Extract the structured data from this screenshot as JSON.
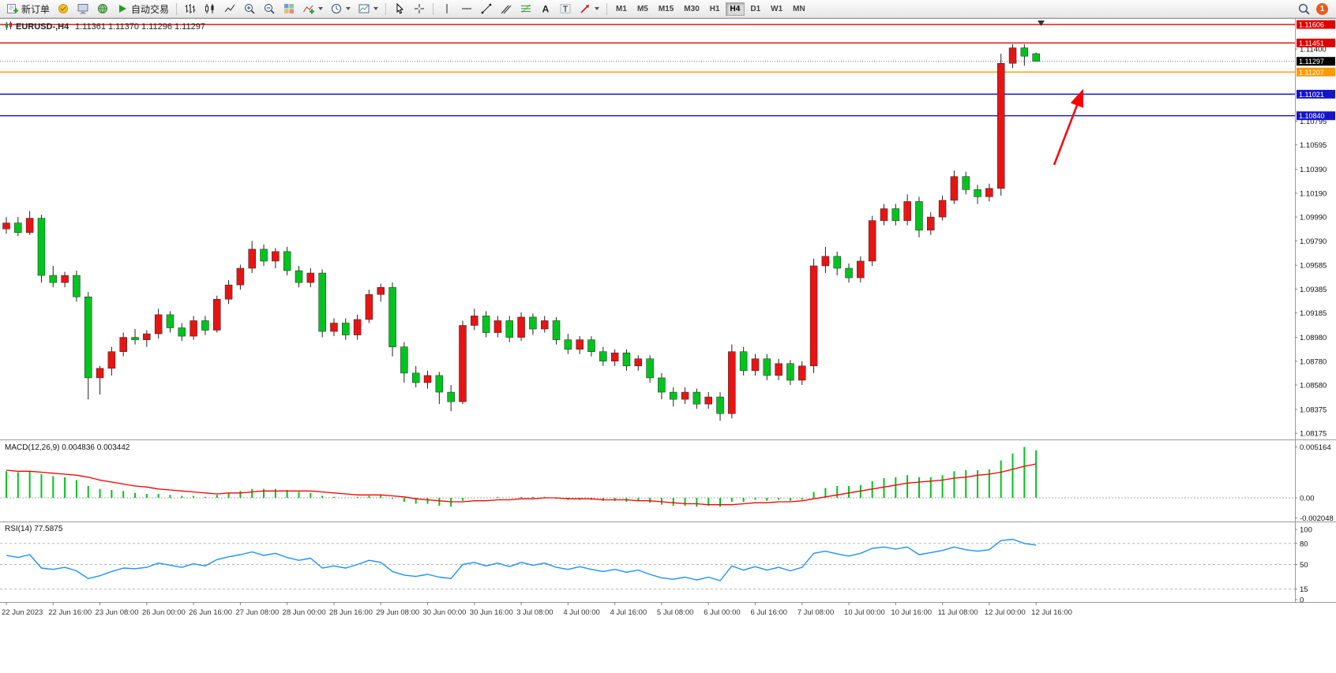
{
  "toolbar": {
    "new_order": "新订单",
    "autotrading": "自动交易",
    "timeframes": [
      "M1",
      "M5",
      "M15",
      "M30",
      "H1",
      "H4",
      "D1",
      "W1",
      "MN"
    ],
    "active_timeframe": "H4",
    "notification_count": "1",
    "icon_glyphs": {
      "text_tool": "A",
      "label_tool": "T"
    }
  },
  "chart": {
    "symbol_title": "EURUSD-,H4",
    "ohlc_quote": "1.11361 1.11370 1.11296 1.11297"
  },
  "chart_data": {
    "type": "candlestick",
    "symbol": "EURUSD-",
    "period": "H4",
    "up_color": "#e81414",
    "down_color": "#00c41e",
    "price_range": {
      "top": 1.11646,
      "bottom": 1.08123
    },
    "y_ticks": [
      "1.11400",
      "1.10795",
      "1.10595",
      "1.10390",
      "1.10190",
      "1.09990",
      "1.09790",
      "1.09585",
      "1.09385",
      "1.09185",
      "1.08980",
      "1.08780",
      "1.08580",
      "1.08375",
      "1.08175"
    ],
    "price_lines": [
      {
        "price": 1.11606,
        "label": "1.11606",
        "color": "#e00000",
        "style": "solid"
      },
      {
        "price": 1.11451,
        "label": "1.11451",
        "color": "#e00000",
        "style": "solid"
      },
      {
        "price": 1.11297,
        "label": "1.11297",
        "color": "#000000",
        "style": "dotted",
        "role": "current-price"
      },
      {
        "price": 1.11207,
        "label": "1.11207",
        "color": "#ff9900",
        "style": "solid"
      },
      {
        "price": 1.11021,
        "label": "1.11021",
        "color": "#1515c8",
        "style": "solid"
      },
      {
        "price": 1.1084,
        "label": "1.10840",
        "color": "#1515c8",
        "style": "solid"
      }
    ],
    "x_labels": [
      "22 Jun 2023",
      "22 Jun 16:00",
      "23 Jun 08:00",
      "26 Jun 00:00",
      "26 Jun 16:00",
      "27 Jun 08:00",
      "28 Jun 00:00",
      "28 Jun 16:00",
      "29 Jun 08:00",
      "30 Jun 00:00",
      "30 Jun 16:00",
      "3 Jul 08:00",
      "4 Jul 00:00",
      "4 Jul 16:00",
      "5 Jul 08:00",
      "6 Jul 00:00",
      "6 Jul 16:00",
      "7 Jul 08:00",
      "10 Jul 00:00",
      "10 Jul 16:00",
      "11 Jul 08:00",
      "12 Jul 00:00",
      "12 Jul 16:00"
    ],
    "x_label_every_n_bars": 4,
    "candles_ohlc": [
      [
        1.0989,
        1.0999,
        1.0985,
        1.0994
      ],
      [
        1.0994,
        1.0999,
        1.0983,
        1.0986
      ],
      [
        1.0986,
        1.1004,
        1.0984,
        1.0998
      ],
      [
        1.0998,
        1.1001,
        1.0944,
        1.095
      ],
      [
        1.095,
        1.0958,
        1.094,
        1.0944
      ],
      [
        1.0944,
        1.0953,
        1.094,
        1.095
      ],
      [
        1.095,
        1.0954,
        1.0928,
        1.0932
      ],
      [
        1.0932,
        1.0936,
        1.0846,
        1.0864
      ],
      [
        1.0864,
        1.0874,
        1.085,
        1.0872
      ],
      [
        1.0872,
        1.089,
        1.0866,
        1.0886
      ],
      [
        1.0886,
        1.0902,
        1.0882,
        1.0898
      ],
      [
        1.0898,
        1.0905,
        1.0892,
        1.0896
      ],
      [
        1.0896,
        1.0904,
        1.089,
        1.0901
      ],
      [
        1.0901,
        1.0922,
        1.0897,
        1.0917
      ],
      [
        1.0917,
        1.092,
        1.0902,
        1.0906
      ],
      [
        1.0906,
        1.091,
        1.0895,
        1.0899
      ],
      [
        1.0899,
        1.0916,
        1.0896,
        1.0912
      ],
      [
        1.0912,
        1.0916,
        1.09,
        1.0904
      ],
      [
        1.0904,
        1.0933,
        1.0902,
        1.093
      ],
      [
        1.093,
        1.0946,
        1.0926,
        1.0942
      ],
      [
        1.0942,
        1.0959,
        1.0938,
        1.0956
      ],
      [
        1.0956,
        1.0979,
        1.0952,
        1.0972
      ],
      [
        1.0972,
        1.0976,
        1.0958,
        1.0962
      ],
      [
        1.0962,
        1.0973,
        1.0956,
        1.097
      ],
      [
        1.097,
        1.0974,
        1.095,
        1.0954
      ],
      [
        1.0954,
        1.0958,
        1.094,
        1.0944
      ],
      [
        1.0944,
        1.0956,
        1.094,
        1.0952
      ],
      [
        1.0952,
        1.0955,
        1.0898,
        1.0903
      ],
      [
        1.0903,
        1.0914,
        1.0899,
        1.091
      ],
      [
        1.091,
        1.0914,
        1.0896,
        1.09
      ],
      [
        1.09,
        1.0917,
        1.0896,
        1.0913
      ],
      [
        1.0913,
        1.0938,
        1.091,
        1.0934
      ],
      [
        1.0934,
        1.0943,
        1.0928,
        1.094
      ],
      [
        1.094,
        1.0944,
        1.0882,
        1.089
      ],
      [
        1.089,
        1.0894,
        1.086,
        1.0868
      ],
      [
        1.0868,
        1.0874,
        1.0856,
        1.086
      ],
      [
        1.086,
        1.087,
        1.0855,
        1.0866
      ],
      [
        1.0866,
        1.0869,
        1.0842,
        1.0852
      ],
      [
        1.0852,
        1.0858,
        1.0836,
        1.0844
      ],
      [
        1.0844,
        1.0912,
        1.0842,
        1.0908
      ],
      [
        1.0908,
        1.0922,
        1.0904,
        1.0916
      ],
      [
        1.0916,
        1.092,
        1.0898,
        1.0902
      ],
      [
        1.0902,
        1.0916,
        1.0898,
        1.0912
      ],
      [
        1.0912,
        1.0916,
        1.0894,
        1.0898
      ],
      [
        1.0898,
        1.0919,
        1.0895,
        1.0915
      ],
      [
        1.0915,
        1.0918,
        1.09,
        1.0905
      ],
      [
        1.0905,
        1.0916,
        1.0902,
        1.0912
      ],
      [
        1.0912,
        1.0915,
        1.0892,
        1.0896
      ],
      [
        1.0896,
        1.0901,
        1.0884,
        1.0888
      ],
      [
        1.0888,
        1.0899,
        1.0884,
        1.0896
      ],
      [
        1.0896,
        1.0899,
        1.0882,
        1.0886
      ],
      [
        1.0886,
        1.089,
        1.0874,
        1.0878
      ],
      [
        1.0878,
        1.0888,
        1.0874,
        1.0885
      ],
      [
        1.0885,
        1.0888,
        1.087,
        1.0874
      ],
      [
        1.0874,
        1.0883,
        1.087,
        1.088
      ],
      [
        1.088,
        1.0883,
        1.086,
        1.0864
      ],
      [
        1.0864,
        1.0868,
        1.0846,
        1.0852
      ],
      [
        1.0852,
        1.0856,
        1.084,
        1.0846
      ],
      [
        1.0846,
        1.0856,
        1.0842,
        1.0852
      ],
      [
        1.0852,
        1.0855,
        1.0838,
        1.0842
      ],
      [
        1.0842,
        1.0852,
        1.0838,
        1.0848
      ],
      [
        1.0848,
        1.0852,
        1.0828,
        1.0834
      ],
      [
        1.0834,
        1.0892,
        1.083,
        1.0886
      ],
      [
        1.0886,
        1.089,
        1.0866,
        1.087
      ],
      [
        1.087,
        1.0884,
        1.0866,
        1.088
      ],
      [
        1.088,
        1.0884,
        1.0862,
        1.0866
      ],
      [
        1.0866,
        1.088,
        1.0862,
        1.0876
      ],
      [
        1.0876,
        1.0879,
        1.0858,
        1.0862
      ],
      [
        1.0862,
        1.0878,
        1.0858,
        1.0874
      ],
      [
        1.0874,
        1.0964,
        1.0868,
        1.0958
      ],
      [
        1.0958,
        1.0974,
        1.0952,
        1.0966
      ],
      [
        1.0966,
        1.097,
        1.095,
        1.0956
      ],
      [
        1.0956,
        1.096,
        1.0944,
        1.0948
      ],
      [
        1.0948,
        1.0966,
        1.0944,
        1.0962
      ],
      [
        1.0962,
        1.1,
        1.0958,
        1.0996
      ],
      [
        1.0996,
        1.101,
        1.0992,
        1.1006
      ],
      [
        1.1006,
        1.101,
        1.0992,
        1.0996
      ],
      [
        1.0996,
        1.1018,
        1.0992,
        1.1012
      ],
      [
        1.1012,
        1.1016,
        1.0982,
        1.0988
      ],
      [
        1.0988,
        1.1003,
        1.0984,
        1.0999
      ],
      [
        1.0999,
        1.1017,
        1.0996,
        1.1013
      ],
      [
        1.1013,
        1.1038,
        1.101,
        1.1033
      ],
      [
        1.1033,
        1.1037,
        1.1018,
        1.1022
      ],
      [
        1.1022,
        1.1026,
        1.101,
        1.1016
      ],
      [
        1.1016,
        1.1027,
        1.1012,
        1.1023
      ],
      [
        1.1023,
        1.1136,
        1.1017,
        1.1128
      ],
      [
        1.1128,
        1.1144,
        1.1124,
        1.1141
      ],
      [
        1.1141,
        1.1144,
        1.1126,
        1.1134
      ],
      [
        1.11361,
        1.1137,
        1.11296,
        1.11297
      ]
    ],
    "indicators": [
      {
        "name": "MACD",
        "label": "MACD(12,26,9) 0.004836 0.003442",
        "y_ticks": [
          "0.005164",
          "0.00",
          "-0.002048"
        ],
        "range": {
          "max": 0.005164,
          "min": -0.002048
        },
        "histogram_color": "#00c41e",
        "signal_color": "#ff0000",
        "histogram": [
          0.0027,
          0.0026,
          0.0027,
          0.0024,
          0.0022,
          0.0021,
          0.0018,
          0.0012,
          0.0009,
          0.0008,
          0.0007,
          0.0005,
          0.0004,
          0.0004,
          0.0003,
          0.0002,
          0.0002,
          0.0001,
          0.0003,
          0.0005,
          0.0007,
          0.0009,
          0.0009,
          0.0009,
          0.0008,
          0.0006,
          0.0005,
          0.0002,
          0.0001,
          0.0,
          0.0001,
          0.0002,
          0.0003,
          -0.0001,
          -0.0004,
          -0.0006,
          -0.0006,
          -0.0008,
          -0.0009,
          -0.0003,
          0.0,
          0.0,
          0.0001,
          0.0,
          0.0001,
          0.0001,
          0.0001,
          -0.0001,
          -0.0002,
          -0.0002,
          -0.0002,
          -0.0003,
          -0.0003,
          -0.0004,
          -0.0003,
          -0.0005,
          -0.0007,
          -0.0008,
          -0.0008,
          -0.0009,
          -0.0008,
          -0.0009,
          -0.0004,
          -0.0004,
          -0.0002,
          -0.0003,
          -0.0002,
          -0.0003,
          -0.0002,
          0.0006,
          0.001,
          0.0012,
          0.0012,
          0.0013,
          0.0017,
          0.002,
          0.0021,
          0.0023,
          0.0021,
          0.0021,
          0.0023,
          0.0027,
          0.0028,
          0.0028,
          0.0029,
          0.0038,
          0.0045,
          0.005164,
          0.004836
        ],
        "signal": [
          0.0028,
          0.0027,
          0.0027,
          0.0026,
          0.0025,
          0.0024,
          0.0023,
          0.0021,
          0.0018,
          0.0016,
          0.0014,
          0.0012,
          0.0011,
          0.0009,
          0.0008,
          0.0007,
          0.0006,
          0.0005,
          0.0004,
          0.0005,
          0.0005,
          0.0006,
          0.0007,
          0.0007,
          0.0007,
          0.0007,
          0.0007,
          0.0006,
          0.0005,
          0.0004,
          0.0003,
          0.0003,
          0.0003,
          0.0002,
          0.0001,
          -0.0001,
          -0.0002,
          -0.0003,
          -0.0004,
          -0.0004,
          -0.0003,
          -0.0003,
          -0.0002,
          -0.0002,
          -0.0001,
          -0.0001,
          0.0,
          0.0,
          -0.0001,
          -0.0001,
          -0.0001,
          -0.0002,
          -0.0002,
          -0.0002,
          -0.0003,
          -0.0003,
          -0.0004,
          -0.0005,
          -0.0006,
          -0.0006,
          -0.0007,
          -0.0007,
          -0.0007,
          -0.0006,
          -0.0005,
          -0.0005,
          -0.0004,
          -0.0004,
          -0.0003,
          -0.0001,
          0.0001,
          0.0003,
          0.0005,
          0.0007,
          0.0009,
          0.0011,
          0.0013,
          0.0015,
          0.0016,
          0.0017,
          0.0018,
          0.002,
          0.0021,
          0.0023,
          0.0024,
          0.0026,
          0.0029,
          0.0032,
          0.003442
        ]
      },
      {
        "name": "RSI",
        "label": "RSI(14) 77.5875",
        "levels": [
          "100",
          "80",
          "50",
          "15",
          "0"
        ],
        "line_color": "#1e90ff",
        "range": {
          "max": 100,
          "min": 0
        },
        "values": [
          63,
          60,
          64,
          45,
          43,
          46,
          41,
          30,
          34,
          40,
          45,
          44,
          46,
          52,
          49,
          46,
          51,
          48,
          57,
          61,
          64,
          68,
          63,
          66,
          60,
          56,
          59,
          45,
          48,
          45,
          50,
          56,
          53,
          40,
          35,
          33,
          36,
          32,
          30,
          50,
          53,
          48,
          52,
          47,
          53,
          49,
          52,
          46,
          43,
          47,
          43,
          40,
          43,
          39,
          42,
          36,
          31,
          29,
          32,
          28,
          32,
          27,
          48,
          42,
          47,
          42,
          46,
          41,
          46,
          66,
          69,
          65,
          62,
          66,
          73,
          75,
          72,
          75,
          64,
          67,
          70,
          75,
          71,
          69,
          71,
          84,
          86,
          80,
          77.59
        ]
      }
    ],
    "annotation_arrow": {
      "color": "#ff0000"
    }
  }
}
